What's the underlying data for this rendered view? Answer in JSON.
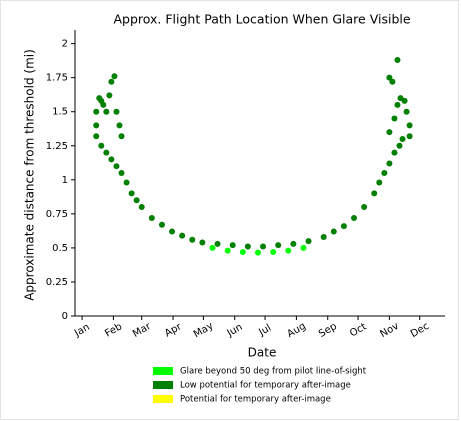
{
  "chart_data": {
    "type": "scatter",
    "title": "Approx. Flight Path Location When Glare Visible",
    "x_label": "Date",
    "y_label": "Approximate distance from threshold (mi)",
    "xlim": [
      -6,
      360
    ],
    "ylim": [
      0,
      2.1
    ],
    "xticks": [
      {
        "value": 1,
        "label": "Jan"
      },
      {
        "value": 32,
        "label": "Feb"
      },
      {
        "value": 60,
        "label": "Mar"
      },
      {
        "value": 91,
        "label": "Apr"
      },
      {
        "value": 121,
        "label": "May"
      },
      {
        "value": 152,
        "label": "Jun"
      },
      {
        "value": 182,
        "label": "Jul"
      },
      {
        "value": 213,
        "label": "Aug"
      },
      {
        "value": 244,
        "label": "Sep"
      },
      {
        "value": 274,
        "label": "Oct"
      },
      {
        "value": 305,
        "label": "Nov"
      },
      {
        "value": 335,
        "label": "Dec"
      }
    ],
    "yticks": [
      0,
      0.25,
      0.5,
      0.75,
      1,
      1.25,
      1.5,
      1.75,
      2
    ],
    "series": [
      {
        "name": "Glare beyond 50 deg from pilot line-of-sight",
        "color": "#00ff00",
        "x": [
          130,
          145,
          160,
          175,
          190,
          205,
          220
        ],
        "values": [
          0.5,
          0.48,
          0.47,
          0.465,
          0.47,
          0.48,
          0.5
        ]
      },
      {
        "name": "Low potential for temporary after-image",
        "color": "#008000",
        "x": [
          15,
          15,
          15,
          18,
          20,
          22,
          25,
          28,
          30,
          33,
          35,
          38,
          40,
          20,
          25,
          30,
          35,
          40,
          45,
          50,
          55,
          60,
          70,
          80,
          90,
          100,
          110,
          120,
          135,
          150,
          165,
          180,
          195,
          210,
          225,
          240,
          250,
          260,
          270,
          280,
          290,
          295,
          300,
          305,
          310,
          315,
          318,
          305,
          310,
          313,
          316,
          320,
          322,
          325,
          325,
          305,
          308,
          313
        ],
        "values": [
          1.32,
          1.4,
          1.5,
          1.6,
          1.58,
          1.55,
          1.5,
          1.62,
          1.72,
          1.76,
          1.5,
          1.4,
          1.32,
          1.25,
          1.2,
          1.15,
          1.1,
          1.05,
          0.98,
          0.9,
          0.85,
          0.8,
          0.72,
          0.67,
          0.62,
          0.59,
          0.56,
          0.54,
          0.53,
          0.52,
          0.51,
          0.51,
          0.52,
          0.53,
          0.55,
          0.58,
          0.62,
          0.66,
          0.72,
          0.8,
          0.9,
          0.98,
          1.05,
          1.12,
          1.2,
          1.25,
          1.3,
          1.35,
          1.45,
          1.55,
          1.6,
          1.58,
          1.5,
          1.4,
          1.32,
          1.75,
          1.72,
          1.88
        ]
      },
      {
        "name": "Potential for temporary after-image",
        "color": "#ffff00",
        "x": [],
        "values": []
      }
    ],
    "legend": "bottom"
  }
}
